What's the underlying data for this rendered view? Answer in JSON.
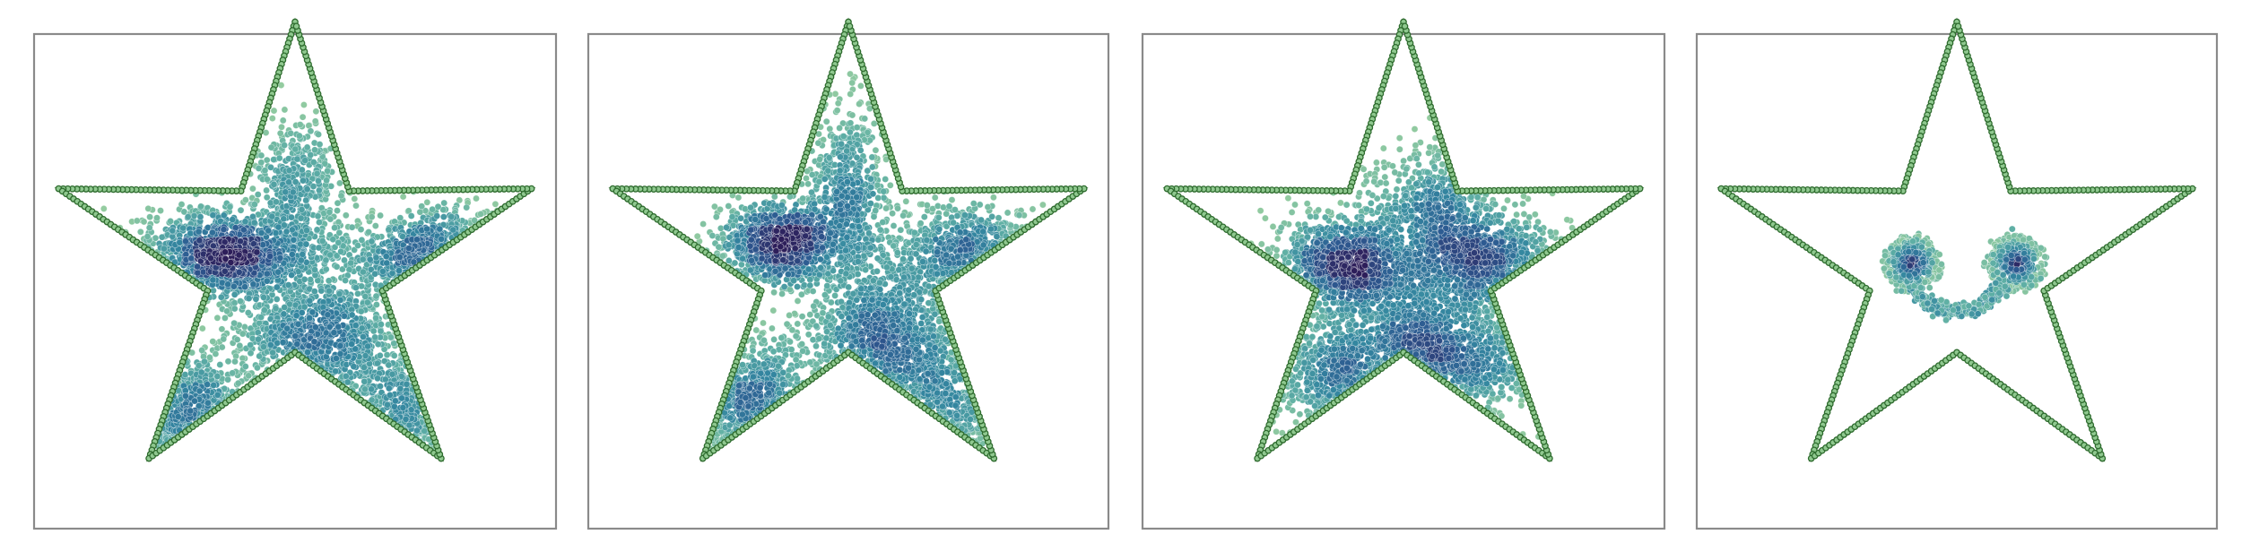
{
  "chart_data": [
    {
      "type": "scatter",
      "panel": 1,
      "xlim": [
        -1.05,
        1.05
      ],
      "ylim": [
        -1.1,
        0.95
      ],
      "grid": false,
      "legend": "none",
      "boundary": {
        "shape": "five-point star",
        "outer_radius": 1.0,
        "inner_radius": 0.37,
        "beads": 400
      },
      "points": 3800,
      "clusters": [
        {
          "center": [
            -0.3,
            0.04
          ],
          "spread": [
            0.16,
            0.09
          ],
          "share": 0.27
        },
        {
          "center": [
            0.58,
            0.02
          ],
          "spread": [
            0.19,
            0.1
          ],
          "share": 0.15
        },
        {
          "center": [
            0.1,
            -0.33
          ],
          "spread": [
            0.18,
            0.13
          ],
          "share": 0.24
        },
        {
          "center": [
            0.02,
            0.3
          ],
          "spread": [
            0.1,
            0.16
          ],
          "share": 0.12
        },
        {
          "center": [
            -0.42,
            -0.68
          ],
          "spread": [
            0.11,
            0.14
          ],
          "share": 0.1
        },
        {
          "center": [
            0.45,
            -0.62
          ],
          "spread": [
            0.1,
            0.12
          ],
          "share": 0.07
        },
        {
          "center": [
            -0.08,
            -0.02
          ],
          "spread": [
            0.15,
            0.12
          ],
          "share": 0.05
        }
      ]
    },
    {
      "type": "scatter",
      "panel": 2,
      "xlim": [
        -1.05,
        1.05
      ],
      "ylim": [
        -1.1,
        0.95
      ],
      "grid": false,
      "legend": "none",
      "boundary": {
        "shape": "five-point star",
        "outer_radius": 1.0,
        "inner_radius": 0.37,
        "beads": 400
      },
      "points": 3800,
      "clusters": [
        {
          "center": [
            -0.26,
            0.08
          ],
          "spread": [
            0.14,
            0.09
          ],
          "share": 0.26
        },
        {
          "center": [
            0.48,
            0.05
          ],
          "spread": [
            0.16,
            0.1
          ],
          "share": 0.14
        },
        {
          "center": [
            0.15,
            -0.33
          ],
          "spread": [
            0.16,
            0.13
          ],
          "share": 0.24
        },
        {
          "center": [
            0.0,
            0.34
          ],
          "spread": [
            0.08,
            0.16
          ],
          "share": 0.12
        },
        {
          "center": [
            -0.38,
            -0.6
          ],
          "spread": [
            0.12,
            0.14
          ],
          "share": 0.12
        },
        {
          "center": [
            0.42,
            -0.58
          ],
          "spread": [
            0.1,
            0.12
          ],
          "share": 0.07
        },
        {
          "center": [
            0.12,
            -0.05
          ],
          "spread": [
            0.14,
            0.12
          ],
          "share": 0.05
        }
      ]
    },
    {
      "type": "scatter",
      "panel": 3,
      "xlim": [
        -1.05,
        1.05
      ],
      "ylim": [
        -1.1,
        0.95
      ],
      "grid": false,
      "legend": "none",
      "boundary": {
        "shape": "five-point star",
        "outer_radius": 1.0,
        "inner_radius": 0.37,
        "beads": 400
      },
      "points": 3800,
      "clusters": [
        {
          "center": [
            -0.24,
            0.0
          ],
          "spread": [
            0.14,
            0.1
          ],
          "share": 0.23
        },
        {
          "center": [
            0.34,
            0.0
          ],
          "spread": [
            0.15,
            0.11
          ],
          "share": 0.2
        },
        {
          "center": [
            0.07,
            -0.35
          ],
          "spread": [
            0.15,
            0.12
          ],
          "share": 0.2
        },
        {
          "center": [
            0.12,
            0.22
          ],
          "spread": [
            0.12,
            0.14
          ],
          "share": 0.14
        },
        {
          "center": [
            -0.26,
            -0.47
          ],
          "spread": [
            0.14,
            0.13
          ],
          "share": 0.12
        },
        {
          "center": [
            0.35,
            -0.45
          ],
          "spread": [
            0.12,
            0.12
          ],
          "share": 0.06
        },
        {
          "center": [
            -0.05,
            -0.1
          ],
          "spread": [
            0.2,
            0.12
          ],
          "share": 0.05
        }
      ]
    },
    {
      "type": "scatter",
      "panel": 4,
      "xlim": [
        -1.05,
        1.05
      ],
      "ylim": [
        -1.1,
        0.95
      ],
      "grid": false,
      "legend": "none",
      "boundary": {
        "shape": "five-point star",
        "outer_radius": 1.0,
        "inner_radius": 0.37,
        "beads": 400
      },
      "points": 1500,
      "smiley": {
        "eyes": [
          {
            "center": [
              -0.18,
              0.0
            ],
            "core_spread": 0.035,
            "ring_radius": 0.1
          },
          {
            "center": [
              0.24,
              0.0
            ],
            "core_spread": 0.035,
            "ring_radius": 0.1
          }
        ],
        "mouth": {
          "center": [
            0.0,
            -0.2
          ],
          "radius": 0.2,
          "arc_deg": [
            200,
            340
          ],
          "spread": 0.015
        }
      }
    }
  ]
}
